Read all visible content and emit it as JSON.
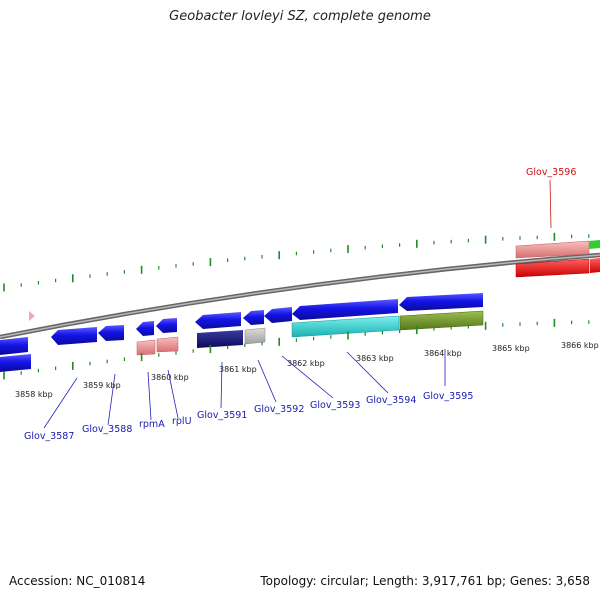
{
  "title": "Geobacter lovleyi SZ, complete genome",
  "footer": {
    "accession": "Accession: NC_010814",
    "summary": "Topology: circular; Length: 3,917,761 bp; Genes: 3,658"
  },
  "ruler": {
    "labels": [
      "3858 kbp",
      "3859 kbp",
      "3860 kbp",
      "3861 kbp",
      "3862 kbp",
      "3863 kbp",
      "3864 kbp",
      "3865 kbp",
      "3866 kbp"
    ]
  },
  "genes": {
    "labels": [
      "Glov_3587",
      "Glov_3588",
      "rpmA",
      "rplU",
      "Glov_3591",
      "Glov_3592",
      "Glov_3593",
      "Glov_3594",
      "Glov_3595"
    ],
    "outer_label": "Glov_3596"
  },
  "colors": {
    "cds_blue": "#1414e6",
    "cds_navy": "#10107a",
    "gene_salmon": "#ec8f8f",
    "cyan": "#22cccc",
    "olive": "#6b8e23",
    "red": "#ee1111",
    "green": "#33cc33",
    "backbone": "#888888",
    "tick_green": "#228b22",
    "label_blue": "#1a1ab0",
    "label_red": "#cc1111"
  }
}
